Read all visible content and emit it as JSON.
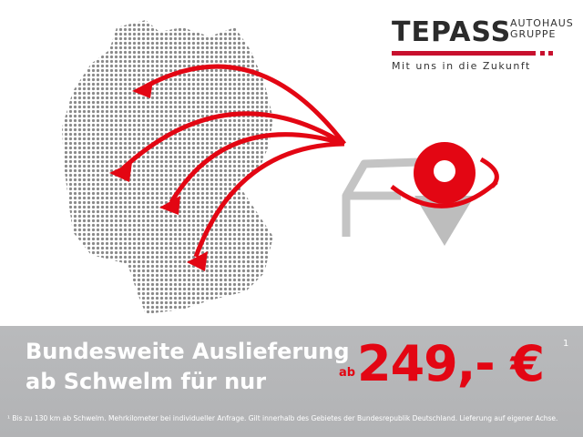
{
  "logo": {
    "brand": "TEPASS",
    "sub_line1": "AUTOHAUS",
    "sub_line2": "GRUPPE",
    "tagline": "Mit uns in die Zukunft"
  },
  "colors": {
    "accent": "#e30613",
    "band": "#b6b7b9",
    "map_dots": "#8a8a8a",
    "car": "#c4c4c4"
  },
  "icons": [
    "germany-map",
    "delivery-arc-arrows",
    "car-icon",
    "location-pin-icon"
  ],
  "headline": {
    "line1": "Bundesweite Auslieferung",
    "line2": "ab Schwelm für nur"
  },
  "price": {
    "prefix": "ab",
    "amount": "249,- €",
    "footnote_mark": "1"
  },
  "footnote": "¹ Bis zu 130 km ab Schwelm. Mehrkilometer bei individueller Anfrage. Gilt innerhalb des Gebietes der Bundesrepublik Deutschland. Lieferung auf eigener Achse."
}
